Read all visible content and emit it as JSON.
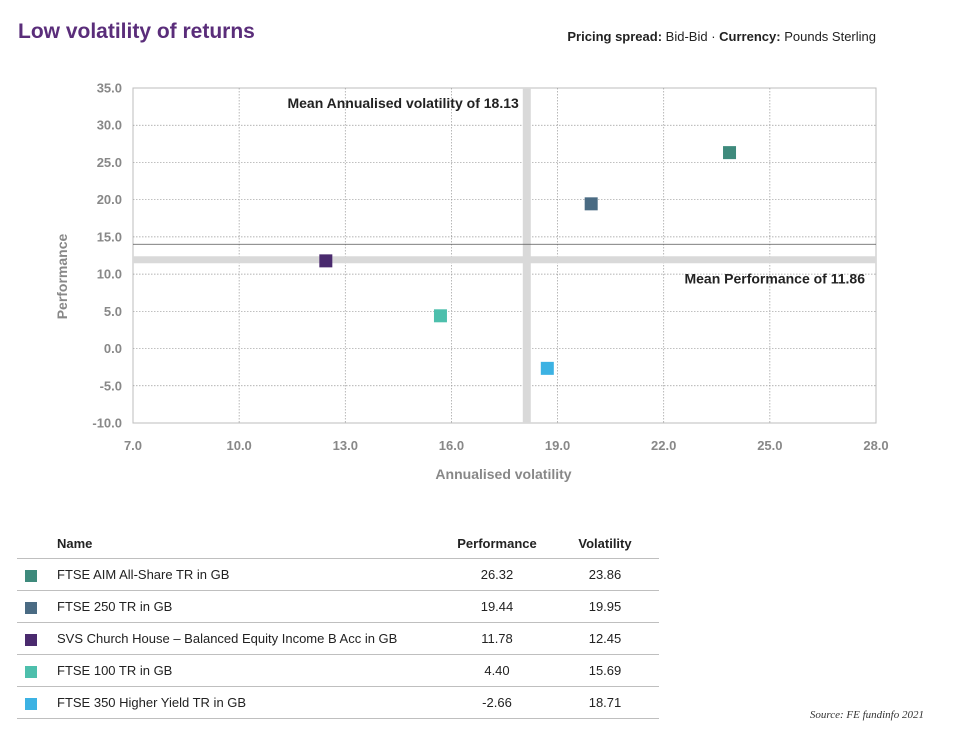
{
  "header": {
    "title": "Low volatility of returns",
    "pricing_label": "Pricing spread:",
    "pricing_value": "Bid-Bid",
    "separator": "·",
    "currency_label": "Currency:",
    "currency_value": "Pounds Sterling"
  },
  "chart_data": {
    "type": "scatter",
    "xlabel": "Annualised volatility",
    "ylabel": "Performance",
    "xlim": [
      7,
      28
    ],
    "ylim": [
      -10,
      35
    ],
    "xticks": [
      7,
      10,
      13,
      16,
      19,
      22,
      25,
      28
    ],
    "xtick_labels": [
      "7.0",
      "10.0",
      "13.0",
      "16.0",
      "19.0",
      "22.0",
      "25.0",
      "28.0"
    ],
    "yticks": [
      -10,
      -5,
      0,
      5,
      10,
      15,
      20,
      25,
      30,
      35
    ],
    "ytick_labels": [
      "-10.0",
      "-5.0",
      "0.0",
      "5.0",
      "10.0",
      "15.0",
      "20.0",
      "25.0",
      "30.0",
      "35.0"
    ],
    "grid": true,
    "points": [
      {
        "name": "FTSE AIM All-Share TR in GB",
        "x": 23.86,
        "y": 26.32,
        "color": "#3e8a7c"
      },
      {
        "name": "FTSE 250 TR in GB",
        "x": 19.95,
        "y": 19.44,
        "color": "#4a6b83"
      },
      {
        "name": "SVS Church House – Balanced Equity Income B Acc in GB",
        "x": 12.45,
        "y": 11.78,
        "color": "#4a2a6e"
      },
      {
        "name": "FTSE 100 TR in GB",
        "x": 15.69,
        "y": 4.4,
        "color": "#4dbfac"
      },
      {
        "name": "FTSE 350 Higher Yield TR in GB",
        "x": 18.71,
        "y": -2.66,
        "color": "#3cb2e3"
      }
    ],
    "mean_volatility": 18.13,
    "mean_performance": 11.86,
    "annotations": {
      "mean_volatility_label": "Mean Annualised volatility of 18.13",
      "mean_performance_label": "Mean Performance of 11.86"
    },
    "reference_band_color": "#d9d9d9"
  },
  "table": {
    "headers": {
      "name": "Name",
      "performance": "Performance",
      "volatility": "Volatility"
    },
    "rows": [
      {
        "name": "FTSE AIM All-Share TR in GB",
        "performance": "26.32",
        "volatility": "23.86",
        "color": "#3e8a7c"
      },
      {
        "name": "FTSE 250 TR in GB",
        "performance": "19.44",
        "volatility": "19.95",
        "color": "#4a6b83"
      },
      {
        "name": "SVS Church House – Balanced Equity Income B Acc in GB",
        "performance": "11.78",
        "volatility": "12.45",
        "color": "#4a2a6e"
      },
      {
        "name": "FTSE 100 TR in GB",
        "performance": "4.40",
        "volatility": "15.69",
        "color": "#4dbfac"
      },
      {
        "name": "FTSE 350 Higher Yield TR in GB",
        "performance": "-2.66",
        "volatility": "18.71",
        "color": "#3cb2e3"
      }
    ]
  },
  "footer": {
    "source": "Source: FE fundinfo 2021"
  }
}
